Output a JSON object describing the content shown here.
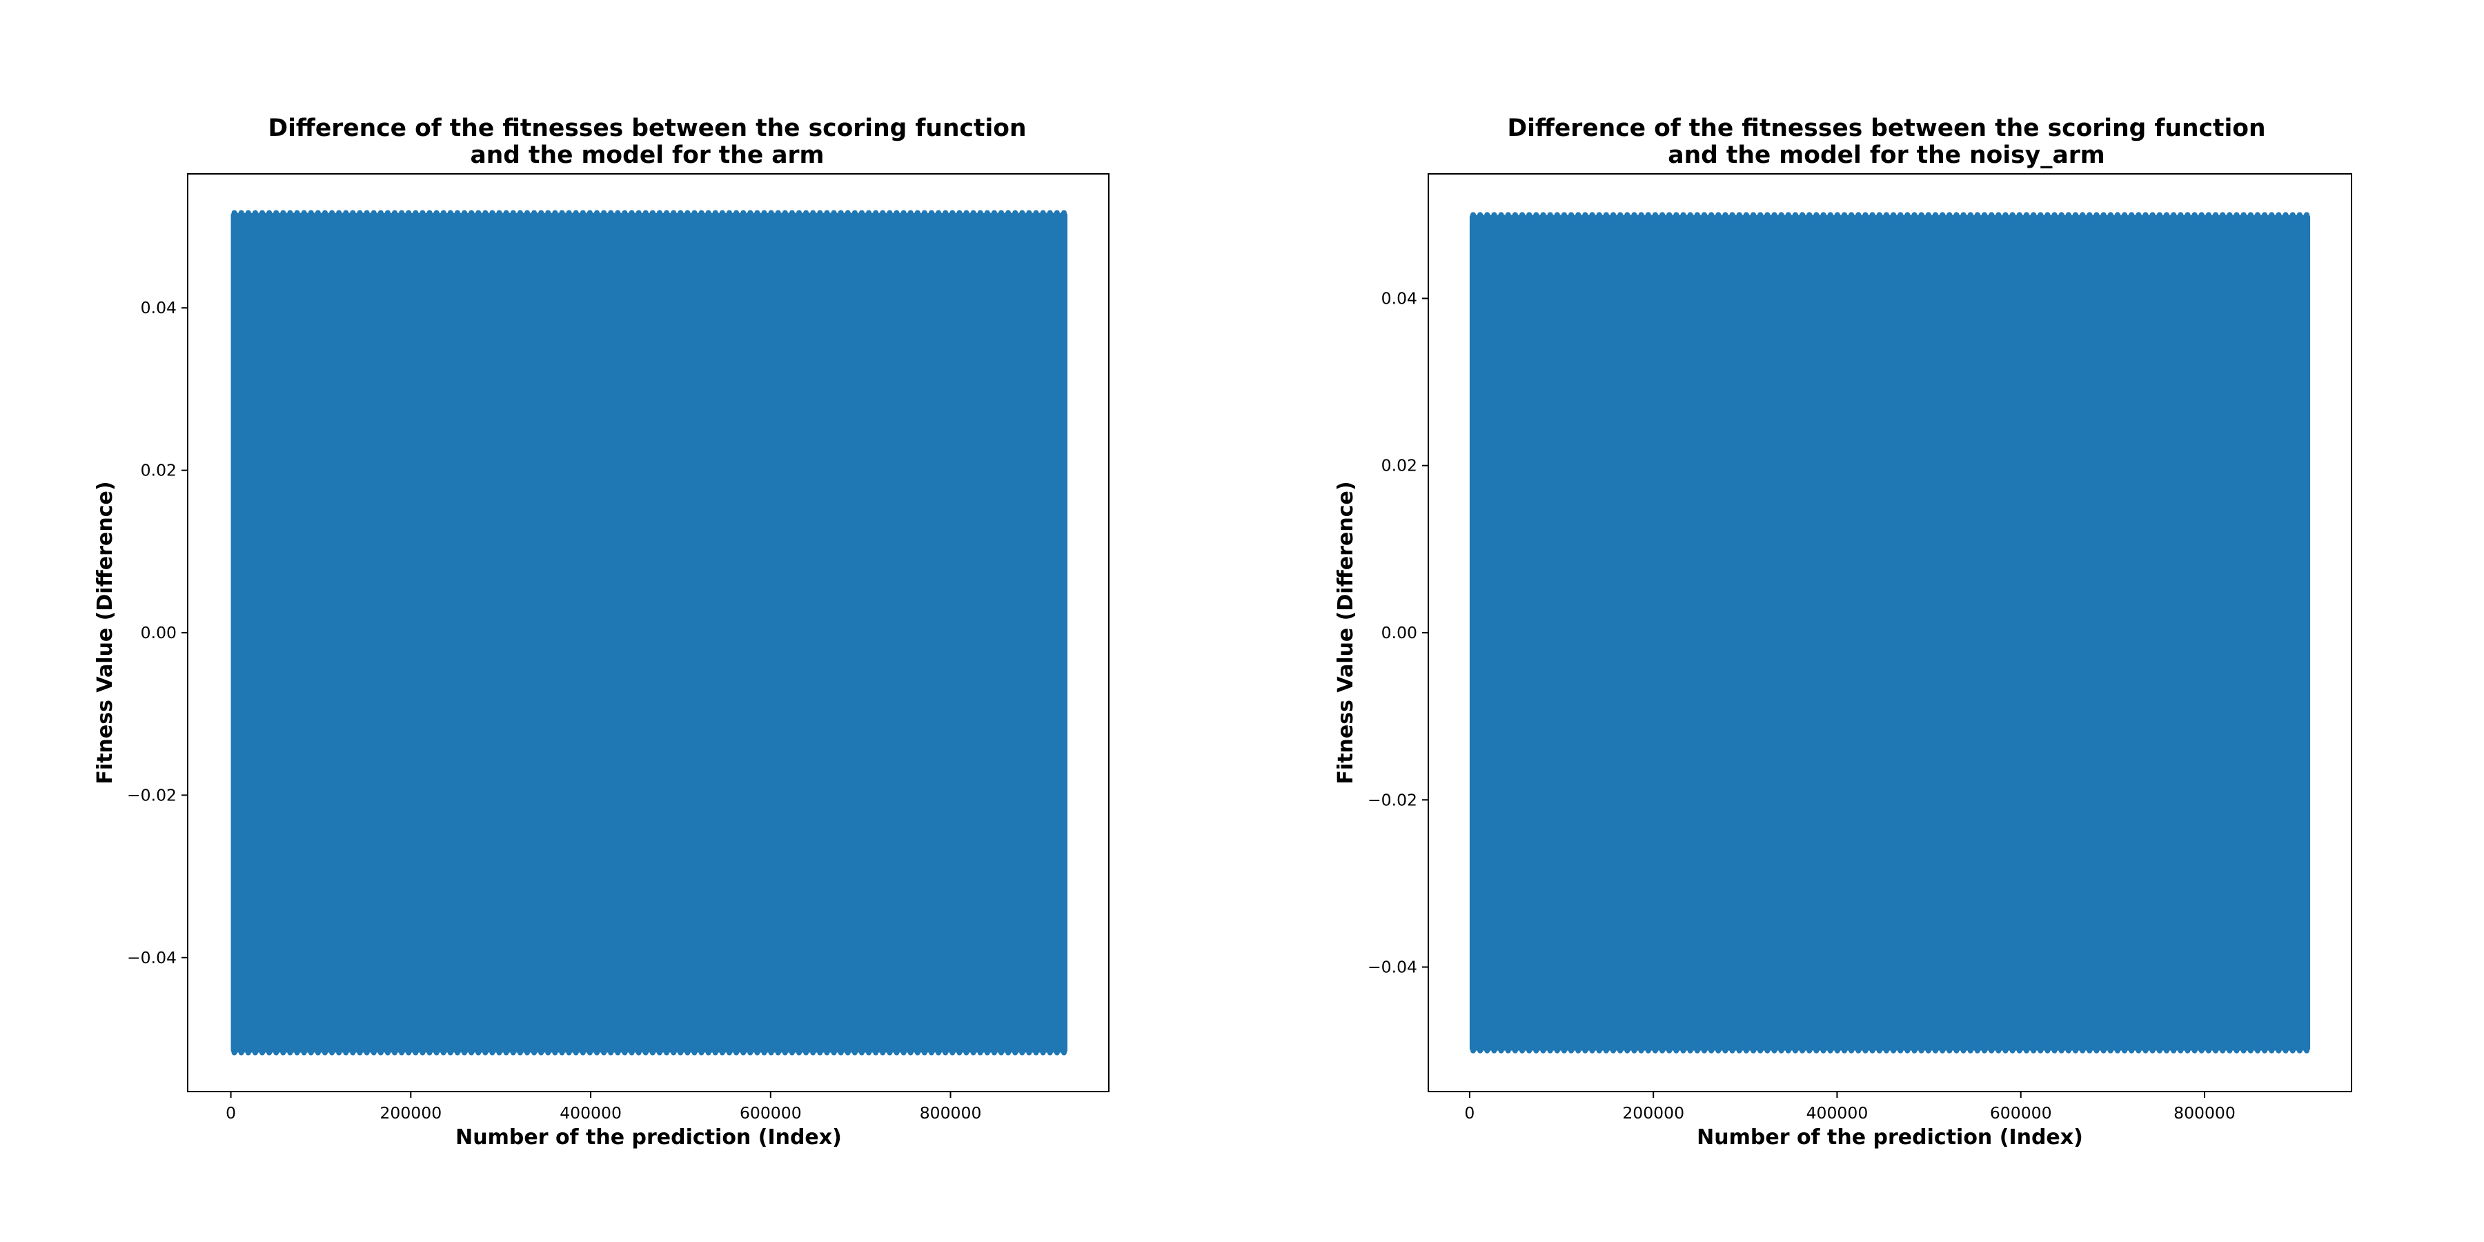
{
  "chart_data": [
    {
      "type": "scatter",
      "title_line1": "Difference of the fitnesses between the scoring function",
      "title_line2": "and the model for the arm",
      "xlabel": "Number of the prediction (Index)",
      "ylabel": "Fitness Value (Difference)",
      "xlim": [
        -48000,
        976000
      ],
      "ylim": [
        -0.0565,
        0.0565
      ],
      "xticks": [
        0,
        200000,
        400000,
        600000,
        800000
      ],
      "xtick_labels": [
        "0",
        "200000",
        "400000",
        "600000",
        "800000"
      ],
      "yticks": [
        -0.04,
        -0.02,
        0.0,
        0.02,
        0.04
      ],
      "ytick_labels": [
        "−0.04",
        "−0.02",
        "0.00",
        "0.02",
        "0.04"
      ],
      "x_range": [
        0,
        930000
      ],
      "y_range": [
        -0.0517,
        0.0517
      ],
      "point_color": "#1f77b4",
      "grid": false,
      "description": "Dense uniform scatter of differences filling the full index range"
    },
    {
      "type": "scatter",
      "title_line1": "Difference of the fitnesses between the scoring function",
      "title_line2": "and the model for the noisy_arm",
      "xlabel": "Number of the prediction (Index)",
      "ylabel": "Fitness Value (Difference)",
      "xlim": [
        -45000,
        960000
      ],
      "ylim": [
        -0.0549,
        0.0549
      ],
      "xticks": [
        0,
        200000,
        400000,
        600000,
        800000
      ],
      "xtick_labels": [
        "0",
        "200000",
        "400000",
        "600000",
        "800000"
      ],
      "yticks": [
        -0.04,
        -0.02,
        0.0,
        0.02,
        0.04
      ],
      "ytick_labels": [
        "−0.04",
        "−0.02",
        "0.00",
        "0.02",
        "0.04"
      ],
      "x_range": [
        0,
        915000
      ],
      "y_range": [
        -0.05,
        0.05
      ],
      "point_color": "#1f77b4",
      "grid": false,
      "description": "Dense uniform scatter of differences filling the full index range"
    }
  ]
}
